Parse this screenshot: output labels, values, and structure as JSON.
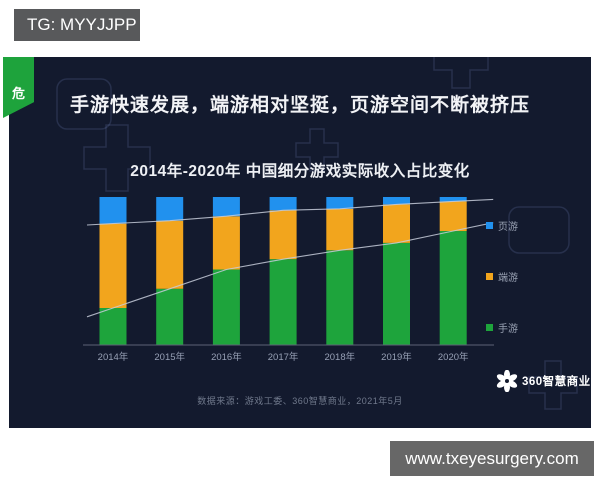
{
  "page": {
    "tg_label": "TG: MYYJJPP",
    "watermark": "www.txeyesurgery.com"
  },
  "slide": {
    "corner_tab": "危",
    "heading": "手游快速发展，端游相对坚挺，页游空间不断被挤压",
    "chart_title": "2014年-2020年 中国细分游戏实际收入占比变化",
    "source_note": "数据来源：游戏工委、360智慧商业，2021年5月",
    "brand": "360智慧商业"
  },
  "colors": {
    "slide_background": "#131a2e",
    "tab_green": "#1ea33c",
    "badge_gray": "#58595b",
    "url_badge_gray": "#676767",
    "heading_text": "#f2f3f6",
    "trend_line": "#c7ccd9",
    "axis_line": "#5c6375",
    "axis_label": "#97a0b5"
  },
  "chart_data": {
    "type": "bar",
    "stacked": true,
    "orientation": "vertical",
    "title": "2014年-2020年 中国细分游戏实际收入占比变化",
    "categories": [
      "2014年",
      "2015年",
      "2016年",
      "2017年",
      "2018年",
      "2019年",
      "2020年"
    ],
    "series": [
      {
        "name": "页游",
        "color": "#2191ee",
        "values": [
          18,
          16,
          13,
          9,
          8,
          5,
          3
        ]
      },
      {
        "name": "端游",
        "color": "#f2a51d",
        "values": [
          57,
          46,
          36,
          33,
          28,
          26,
          20
        ]
      },
      {
        "name": "手游",
        "color": "#1ea43c",
        "values": [
          25,
          38,
          51,
          58,
          64,
          69,
          77
        ]
      }
    ],
    "stack_order_bottom_to_top": [
      "手游",
      "端游",
      "页游"
    ],
    "unit": "%",
    "ylim": [
      0,
      100
    ],
    "grid": false,
    "legend_position": "right",
    "trend_lines": [
      {
        "between": [
          "手游",
          "端游"
        ]
      },
      {
        "between": [
          "端游",
          "页游"
        ]
      }
    ]
  }
}
